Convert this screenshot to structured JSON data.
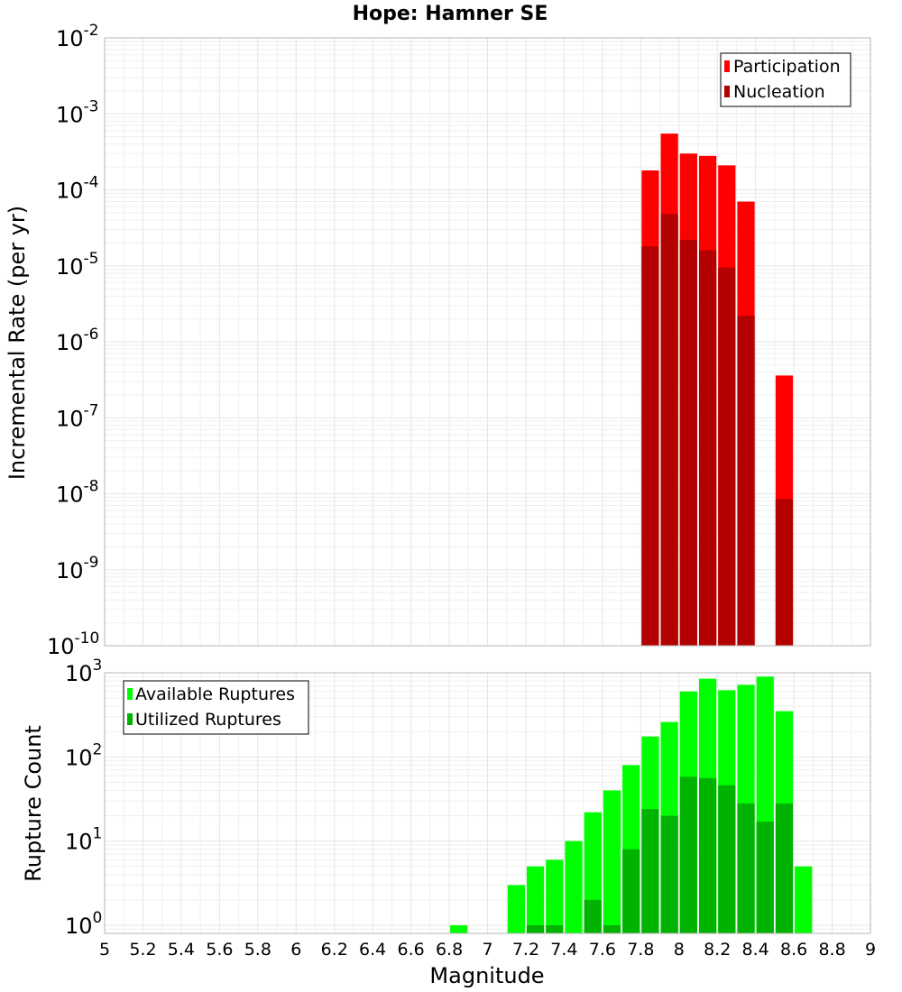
{
  "chart_data": [
    {
      "type": "bar",
      "title": "Hope: Hamner SE",
      "xlabel": "",
      "ylabel": "Incremental Rate (per yr)",
      "yscale": "log",
      "xlim": [
        5,
        9
      ],
      "ylim": [
        1e-10,
        0.01
      ],
      "y_ticks": [
        "10^-10",
        "10^-9",
        "10^-8",
        "10^-7",
        "10^-6",
        "10^-5",
        "10^-4",
        "10^-3",
        "10^-2"
      ],
      "grid": true,
      "legend_position": "top-right",
      "legend": [
        "Participation",
        "Nucleation"
      ],
      "bin_width": 0.1,
      "series": [
        {
          "name": "Participation",
          "color": "#ff0000",
          "x": [
            7.85,
            7.95,
            8.05,
            8.15,
            8.25,
            8.35,
            8.55
          ],
          "values": [
            0.00018,
            0.00055,
            0.0003,
            0.00028,
            0.00021,
            7e-05,
            3.6e-07
          ]
        },
        {
          "name": "Nucleation",
          "color": "#b30000",
          "x": [
            7.85,
            7.95,
            8.05,
            8.15,
            8.25,
            8.35,
            8.55
          ],
          "values": [
            1.8e-05,
            4.8e-05,
            2.2e-05,
            1.6e-05,
            9.5e-06,
            2.2e-06,
            8.5e-09
          ]
        }
      ]
    },
    {
      "type": "bar",
      "title": "",
      "xlabel": "Magnitude",
      "ylabel": "Rupture Count",
      "yscale": "log",
      "xlim": [
        5,
        9
      ],
      "ylim": [
        0.8,
        1000
      ],
      "x_ticks": [
        "5",
        "5.2",
        "5.4",
        "5.6",
        "5.8",
        "6",
        "6.2",
        "6.4",
        "6.6",
        "6.8",
        "7",
        "7.2",
        "7.4",
        "7.6",
        "7.8",
        "8",
        "8.2",
        "8.4",
        "8.6",
        "8.8",
        "9"
      ],
      "y_ticks": [
        "10^0",
        "10^1",
        "10^2",
        "10^3"
      ],
      "grid": true,
      "legend_position": "top-left",
      "legend": [
        "Available Ruptures",
        "Utilized Ruptures"
      ],
      "bin_width": 0.1,
      "series": [
        {
          "name": "Available Ruptures",
          "color": "#00ff00",
          "x": [
            6.85,
            7.15,
            7.25,
            7.35,
            7.45,
            7.55,
            7.65,
            7.75,
            7.85,
            7.95,
            8.05,
            8.15,
            8.25,
            8.35,
            8.45,
            8.55,
            8.65
          ],
          "values": [
            1,
            3,
            5,
            6,
            10,
            22,
            40,
            80,
            175,
            260,
            600,
            850,
            620,
            720,
            900,
            350,
            5
          ]
        },
        {
          "name": "Utilized Ruptures",
          "color": "#00b300",
          "x": [
            7.25,
            7.35,
            7.55,
            7.65,
            7.75,
            7.85,
            7.95,
            8.05,
            8.15,
            8.25,
            8.35,
            8.45,
            8.55
          ],
          "values": [
            1,
            1,
            2,
            1,
            8,
            24,
            20,
            58,
            56,
            46,
            28,
            17,
            28
          ]
        }
      ]
    }
  ]
}
